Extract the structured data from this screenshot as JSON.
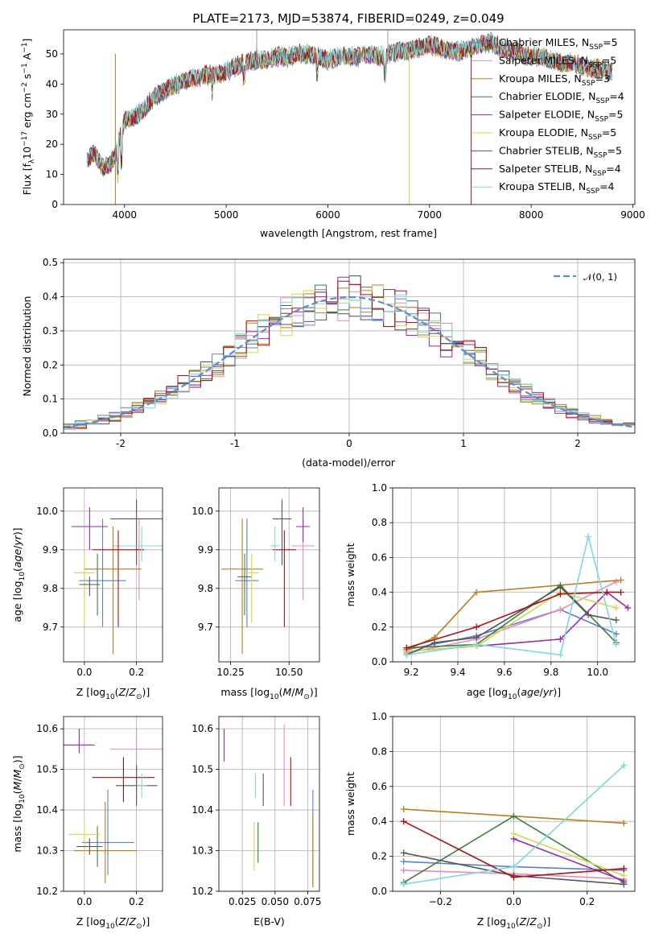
{
  "title": "PLATE=2173, MJD=53874, FIBERID=0249, z=0.049",
  "colors": {
    "Chabrier MILES": "#5b7fd6",
    "Salpeter MILES": "#e88ac0",
    "Kroupa MILES": "#c07a1a",
    "Chabrier ELODIE": "#3f7f3f",
    "Salpeter ELODIE": "#9c27b0",
    "Kroupa ELODIE": "#d4d84a",
    "Chabrier STELIB": "#555555",
    "Salpeter STELIB": "#b01010",
    "Kroupa STELIB": "#7fd8dc",
    "orange": "#e07a1f",
    "normal": "#5b8bd6"
  },
  "legend1": [
    "Chabrier MILES, N$_{SSP}$=5",
    "Salpeter MILES, N$_{SSP}$=5",
    "Kroupa MILES, N$_{SSP}$=3",
    "Chabrier ELODIE, N$_{SSP}$=4",
    "Salpeter ELODIE, N$_{SSP}$=5",
    "Kroupa ELODIE, N$_{SSP}$=5",
    "Chabrier STELIB, N$_{SSP}$=5",
    "Salpeter STELIB, N$_{SSP}$=4",
    "Kroupa STELIB, N$_{SSP}$=4"
  ],
  "legend1_display": [
    {
      "a": "Chabrier MILES, N",
      "sub": "SSP",
      "b": "=5"
    },
    {
      "a": "Salpeter MILES, N",
      "sub": "SSP",
      "b": "=5"
    },
    {
      "a": "Kroupa MILES, N",
      "sub": "SSP",
      "b": "=3"
    },
    {
      "a": "Chabrier ELODIE, N",
      "sub": "SSP",
      "b": "=4"
    },
    {
      "a": "Salpeter ELODIE, N",
      "sub": "SSP",
      "b": "=5"
    },
    {
      "a": "Kroupa ELODIE, N",
      "sub": "SSP",
      "b": "=5"
    },
    {
      "a": "Chabrier STELIB, N",
      "sub": "SSP",
      "b": "=5"
    },
    {
      "a": "Salpeter STELIB, N",
      "sub": "SSP",
      "b": "=4"
    },
    {
      "a": "Kroupa STELIB, N",
      "sub": "SSP",
      "b": "=4"
    }
  ],
  "legend2": "𝒩(0, 1)",
  "labels": {
    "p1_x": "wavelength [Angstrom, rest frame]",
    "p1_y": "Flux [f",
    "p2_x": "(data-model)/error",
    "p2_y": "Normed distribution",
    "p3_x": "Z [log",
    "p3_y": "age  [log",
    "p4_x": "mass [log",
    "p5_x": "age  [log",
    "p5_y": "mass weight",
    "p6_x": "Z [log",
    "p6_y": "mass [log",
    "p7_x": "E(B-V)",
    "p8_x": "Z [log",
    "p8_y": "mass weight"
  },
  "chart_data": [
    {
      "type": "line",
      "title": "PLATE=2173, MJD=53874, FIBERID=0249, z=0.049",
      "xlabel": "wavelength [Angstrom, rest frame]",
      "ylabel": "Flux [fλ10^-17 erg cm^-2 s^-1 A^-1]",
      "xlim": [
        3400,
        9020
      ],
      "ylim": [
        0,
        58
      ],
      "xticks": [
        4000,
        5000,
        6000,
        7000,
        8000,
        9000
      ],
      "yticks": [
        0,
        10,
        20,
        30,
        40,
        50
      ],
      "series": [
        {
          "name": "spectrum",
          "x": [
            3630,
            3700,
            3800,
            3900,
            4000,
            4100,
            4200,
            4300,
            4400,
            4500,
            4600,
            4700,
            4800,
            4900,
            5000,
            5100,
            5200,
            5300,
            5400,
            5500,
            5600,
            5700,
            5800,
            5900,
            6000,
            6100,
            6200,
            6300,
            6400,
            6500,
            6600,
            6700,
            6800,
            6900,
            7000,
            7100,
            7200,
            7300,
            7400,
            7500,
            7600,
            7700,
            7800,
            7900,
            8000,
            8100,
            8200,
            8300,
            8400,
            8500,
            8600,
            8700,
            8800
          ],
          "y": [
            15,
            17,
            12,
            15,
            28,
            29,
            32,
            36,
            38,
            40,
            41,
            42,
            43,
            43,
            44,
            46,
            47,
            48,
            48,
            49,
            49,
            50,
            50,
            49,
            48,
            49,
            49,
            49,
            50,
            49,
            50,
            51,
            51,
            52,
            53,
            52,
            51,
            51,
            52,
            53,
            54,
            52,
            51,
            50,
            49,
            49,
            48,
            47,
            47,
            46,
            45,
            45,
            44
          ]
        }
      ],
      "legend": "upper right"
    },
    {
      "type": "line",
      "xlabel": "(data-model)/error",
      "ylabel": "Normed distribution",
      "xlim": [
        -2.5,
        2.5
      ],
      "ylim": [
        0,
        0.51
      ],
      "xticks": [
        -2,
        -1,
        0,
        1,
        2
      ],
      "yticks": [
        0.0,
        0.1,
        0.2,
        0.3,
        0.4,
        0.5
      ],
      "series": [
        {
          "name": "𝒩(0, 1)",
          "type": "gaussian",
          "mean": 0,
          "sigma": 1
        }
      ]
    },
    {
      "type": "scatter",
      "xlabel": "Z [log10(Z/Z⊙)]",
      "ylabel": "age  [log10(age/yr)]",
      "xlim": [
        -0.08,
        0.3
      ],
      "ylim": [
        9.61,
        10.06
      ],
      "xticks": [
        0.0,
        0.2
      ],
      "yticks": [
        9.7,
        9.8,
        9.9,
        10.0
      ],
      "points": [
        {
          "series": "Chabrier MILES",
          "x": 0.07,
          "y": 9.82,
          "xerr": 0.09,
          "yerr": [
            0.12,
            0.16
          ]
        },
        {
          "series": "Salpeter MILES",
          "x": 0.21,
          "y": 9.91,
          "xerr": 0.1,
          "yerr": [
            0.14,
            0.07
          ]
        },
        {
          "series": "Kroupa MILES",
          "x": 0.11,
          "y": 9.85,
          "xerr": 0.11,
          "yerr": [
            0.22,
            0.11
          ]
        },
        {
          "series": "Chabrier ELODIE",
          "x": 0.05,
          "y": 9.83,
          "xerr": 0.0,
          "yerr": [
            0.1,
            0.06
          ]
        },
        {
          "series": "Salpeter ELODIE",
          "x": 0.02,
          "y": 9.96,
          "xerr": 0.07,
          "yerr": [
            0.06,
            0.05
          ]
        },
        {
          "series": "Kroupa ELODIE",
          "x": 0.0,
          "y": 9.84,
          "xerr": 0.04,
          "yerr": [
            0.13,
            0.05
          ]
        },
        {
          "series": "Chabrier STELIB",
          "x": 0.2,
          "y": 9.98,
          "xerr": 0.1,
          "yerr": [
            0.12,
            0.05
          ]
        },
        {
          "series": "Salpeter STELIB",
          "x": 0.13,
          "y": 9.9,
          "xerr": 0.1,
          "yerr": [
            0.2,
            0.05
          ]
        },
        {
          "series": "Kroupa STELIB",
          "x": 0.22,
          "y": 9.91,
          "xerr": 0.08,
          "yerr": [
            0.04,
            0.05
          ]
        },
        {
          "series": "Chabrier STELIB",
          "x": 0.02,
          "y": 9.81,
          "xerr": 0.04,
          "yerr": [
            0.03,
            0.02
          ]
        }
      ]
    },
    {
      "type": "scatter",
      "xlabel": "mass [log10(M/M⊙)]",
      "ylabel": "",
      "xlim": [
        10.2,
        10.63
      ],
      "ylim": [
        9.61,
        10.06
      ],
      "xticks": [
        10.25,
        10.5
      ],
      "yticks": [
        9.7,
        9.8,
        9.9,
        10.0
      ],
      "points": [
        {
          "series": "Chabrier MILES",
          "x": 10.32,
          "y": 9.82,
          "xerr": 0.05,
          "yerr": [
            0.12,
            0.16
          ]
        },
        {
          "series": "Salpeter MILES",
          "x": 10.56,
          "y": 9.91,
          "xerr": 0.05,
          "yerr": [
            0.14,
            0.07
          ]
        },
        {
          "series": "Kroupa MILES",
          "x": 10.3,
          "y": 9.85,
          "xerr": 0.09,
          "yerr": [
            0.22,
            0.13
          ]
        },
        {
          "series": "Chabrier ELODIE",
          "x": 10.31,
          "y": 9.83,
          "xerr": 0.03,
          "yerr": [
            0.1,
            0.06
          ]
        },
        {
          "series": "Salpeter ELODIE",
          "x": 10.56,
          "y": 9.96,
          "xerr": 0.03,
          "yerr": [
            0.04,
            0.05
          ]
        },
        {
          "series": "Kroupa ELODIE",
          "x": 10.34,
          "y": 9.84,
          "xerr": 0.03,
          "yerr": [
            0.13,
            0.05
          ]
        },
        {
          "series": "Chabrier STELIB",
          "x": 10.47,
          "y": 9.98,
          "xerr": 0.04,
          "yerr": [
            0.12,
            0.05
          ]
        },
        {
          "series": "Salpeter STELIB",
          "x": 10.48,
          "y": 9.9,
          "xerr": 0.05,
          "yerr": [
            0.2,
            0.05
          ]
        },
        {
          "series": "Kroupa STELIB",
          "x": 10.44,
          "y": 9.91,
          "xerr": 0.02,
          "yerr": [
            0.04,
            0.05
          ]
        }
      ]
    },
    {
      "type": "line",
      "xlabel": "age  [log10(age/yr)]",
      "ylabel": "mass weight",
      "xlim": [
        9.12,
        10.16
      ],
      "ylim": [
        0,
        1.0
      ],
      "xticks": [
        9.2,
        9.4,
        9.6,
        9.8,
        10.0
      ],
      "yticks": [
        0.0,
        0.2,
        0.4,
        0.6,
        0.8,
        1.0
      ],
      "series": [
        {
          "name": "Chabrier MILES",
          "x": [
            9.18,
            9.48,
            9.84,
            10.08
          ],
          "y": [
            0.07,
            0.15,
            0.3,
            0.16
          ]
        },
        {
          "name": "Salpeter MILES",
          "x": [
            9.18,
            9.48,
            9.84,
            10.08
          ],
          "y": [
            0.05,
            0.13,
            0.3,
            0.46
          ]
        },
        {
          "name": "Kroupa MILES",
          "x": [
            9.18,
            9.3,
            9.48,
            10.1
          ],
          "y": [
            0.07,
            0.14,
            0.4,
            0.47
          ]
        },
        {
          "name": "Chabrier ELODIE",
          "x": [
            9.18,
            9.48,
            9.84,
            10.08
          ],
          "y": [
            0.08,
            0.1,
            0.44,
            0.11
          ]
        },
        {
          "name": "Salpeter ELODIE",
          "x": [
            9.18,
            9.48,
            9.84,
            10.04,
            10.13
          ],
          "y": [
            0.06,
            0.09,
            0.13,
            0.4,
            0.31
          ]
        },
        {
          "name": "Kroupa ELODIE",
          "x": [
            9.18,
            9.48,
            9.84,
            10.08
          ],
          "y": [
            0.06,
            0.09,
            0.4,
            0.31
          ]
        },
        {
          "name": "Chabrier STELIB",
          "x": [
            9.18,
            9.3,
            9.48,
            9.84,
            9.96,
            10.08
          ],
          "y": [
            0.04,
            0.11,
            0.14,
            0.43,
            0.27,
            0.24
          ]
        },
        {
          "name": "Salpeter STELIB",
          "x": [
            9.18,
            9.48,
            9.84,
            10.04,
            10.1
          ],
          "y": [
            0.08,
            0.2,
            0.39,
            0.4,
            0.4
          ]
        },
        {
          "name": "Kroupa STELIB",
          "x": [
            9.18,
            9.48,
            9.84,
            9.96,
            10.08
          ],
          "y": [
            0.04,
            0.1,
            0.04,
            0.72,
            0.1
          ]
        }
      ]
    },
    {
      "type": "scatter",
      "xlabel": "Z [log10(Z/Z⊙)]",
      "ylabel": "mass [log10(M/M⊙)]",
      "xlim": [
        -0.08,
        0.3
      ],
      "ylim": [
        10.2,
        10.63
      ],
      "xticks": [
        0.0,
        0.2
      ],
      "yticks": [
        10.2,
        10.3,
        10.4,
        10.5,
        10.6
      ],
      "points": [
        {
          "series": "Chabrier MILES",
          "x": 0.09,
          "y": 10.32,
          "xerr": 0.1,
          "yerr": [
            0.08,
            0.13
          ]
        },
        {
          "series": "Salpeter MILES",
          "x": 0.2,
          "y": 10.55,
          "xerr": 0.1,
          "yerr": [
            0.1,
            0.05
          ]
        },
        {
          "series": "Kroupa MILES",
          "x": 0.08,
          "y": 10.3,
          "xerr": 0.12,
          "yerr": [
            0.08,
            0.12
          ]
        },
        {
          "series": "Chabrier ELODIE",
          "x": 0.05,
          "y": 10.31,
          "xerr": 0.0,
          "yerr": [
            0.05,
            0.05
          ]
        },
        {
          "series": "Salpeter ELODIE",
          "x": -0.02,
          "y": 10.56,
          "xerr": 0.06,
          "yerr": [
            0.02,
            0.04
          ]
        },
        {
          "series": "Kroupa ELODIE",
          "x": 0.0,
          "y": 10.34,
          "xerr": 0.06,
          "yerr": [
            0.04,
            0.03
          ]
        },
        {
          "series": "Chabrier STELIB",
          "x": 0.2,
          "y": 10.46,
          "xerr": 0.08,
          "yerr": [
            0.05,
            0.05
          ]
        },
        {
          "series": "Salpeter STELIB",
          "x": 0.15,
          "y": 10.48,
          "xerr": 0.12,
          "yerr": [
            0.06,
            0.05
          ]
        },
        {
          "series": "Kroupa STELIB",
          "x": 0.22,
          "y": 10.46,
          "xerr": 0.02,
          "yerr": [
            0.03,
            0.03
          ]
        },
        {
          "series": "Chabrier STELIB",
          "x": 0.02,
          "y": 10.31,
          "xerr": 0.05,
          "yerr": [
            0.02,
            0.02
          ]
        }
      ]
    },
    {
      "type": "scatter",
      "xlabel": "E(B-V)",
      "ylabel": "",
      "xlim": [
        0.007,
        0.084
      ],
      "ylim": [
        10.2,
        10.63
      ],
      "xticks": [
        0.025,
        0.05,
        0.075
      ],
      "yticks": [
        10.2,
        10.3,
        10.4,
        10.5,
        10.6
      ],
      "points": [
        {
          "series": "Chabrier MILES",
          "x": 0.079,
          "y": 10.33,
          "yerr": [
            0.12,
            0.12
          ]
        },
        {
          "series": "Salpeter MILES",
          "x": 0.057,
          "y": 10.51,
          "yerr": [
            0.1,
            0.1
          ]
        },
        {
          "series": "Kroupa MILES",
          "x": 0.079,
          "y": 10.3,
          "yerr": [
            0.09,
            0.09
          ]
        },
        {
          "series": "Chabrier ELODIE",
          "x": 0.037,
          "y": 10.32,
          "yerr": [
            0.05,
            0.05
          ]
        },
        {
          "series": "Salpeter ELODIE",
          "x": 0.011,
          "y": 10.56,
          "yerr": [
            0.04,
            0.04
          ]
        },
        {
          "series": "Kroupa ELODIE",
          "x": 0.034,
          "y": 10.31,
          "yerr": [
            0.06,
            0.06
          ]
        },
        {
          "series": "Chabrier STELIB",
          "x": 0.041,
          "y": 10.45,
          "yerr": [
            0.04,
            0.04
          ]
        },
        {
          "series": "Salpeter STELIB",
          "x": 0.062,
          "y": 10.47,
          "yerr": [
            0.06,
            0.06
          ]
        },
        {
          "series": "Kroupa STELIB",
          "x": 0.035,
          "y": 10.46,
          "yerr": [
            0.03,
            0.03
          ]
        }
      ]
    },
    {
      "type": "line",
      "xlabel": "Z [log10(Z/Z⊙)]",
      "ylabel": "mass weight",
      "xlim": [
        -0.33,
        0.33
      ],
      "ylim": [
        0,
        1.0
      ],
      "xticks": [
        -0.2,
        0.0,
        0.2
      ],
      "yticks": [
        0.0,
        0.2,
        0.4,
        0.6,
        0.8,
        1.0
      ],
      "series": [
        {
          "name": "Chabrier MILES",
          "x": [
            -0.3,
            0.0,
            0.3
          ],
          "y": [
            0.17,
            0.14,
            0.12
          ]
        },
        {
          "name": "Salpeter MILES",
          "x": [
            -0.3,
            0.0,
            0.3
          ],
          "y": [
            0.12,
            0.1,
            0.07
          ]
        },
        {
          "name": "Kroupa MILES",
          "x": [
            -0.3,
            0.0,
            0.3
          ],
          "y": [
            0.47,
            0.43,
            0.39
          ]
        },
        {
          "name": "Chabrier ELODIE",
          "x": [
            -0.3,
            0.0,
            0.3
          ],
          "y": [
            0.05,
            0.43,
            0.05
          ]
        },
        {
          "name": "Salpeter ELODIE",
          "x": [
            0.0,
            0.3
          ],
          "y": [
            0.3,
            0.06
          ]
        },
        {
          "name": "Kroupa ELODIE",
          "x": [
            0.0,
            0.3
          ],
          "y": [
            0.33,
            0.09
          ]
        },
        {
          "name": "Chabrier STELIB",
          "x": [
            -0.3,
            0.0,
            0.3
          ],
          "y": [
            0.22,
            0.09,
            0.04
          ]
        },
        {
          "name": "Salpeter STELIB",
          "x": [
            -0.3,
            0.0,
            0.3
          ],
          "y": [
            0.4,
            0.08,
            0.13
          ]
        },
        {
          "name": "Kroupa STELIB",
          "x": [
            -0.3,
            0.0,
            0.3
          ],
          "y": [
            0.04,
            0.14,
            0.72
          ]
        }
      ]
    }
  ]
}
